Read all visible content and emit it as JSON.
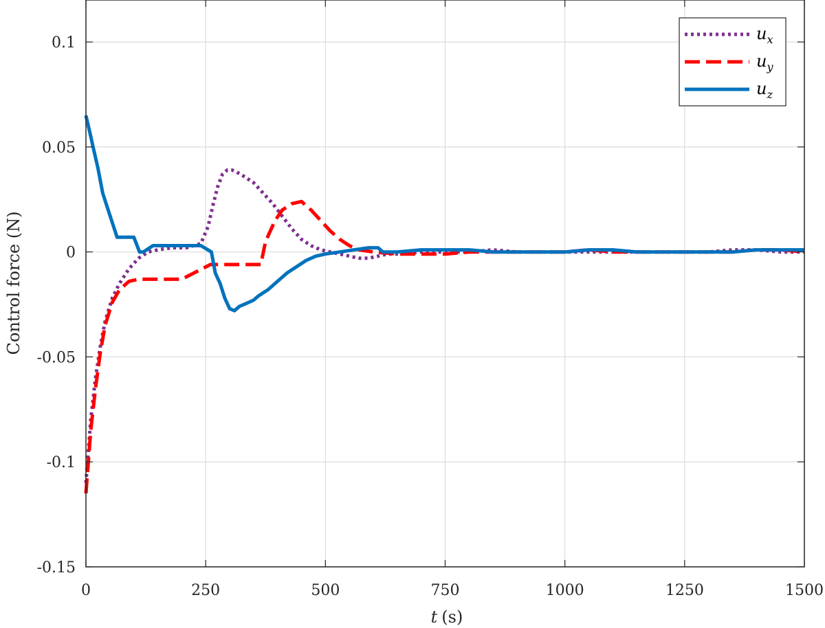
{
  "chart_data": {
    "type": "line",
    "xlabel_var": "t",
    "xlabel_unit": "(s)",
    "ylabel": "Control force (N)",
    "xlim": [
      0,
      1500
    ],
    "ylim": [
      -0.15,
      0.12
    ],
    "xticks": [
      0,
      250,
      500,
      750,
      1000,
      1250,
      1500
    ],
    "xtick_labels": [
      "0",
      "250",
      "500",
      "750",
      "1000",
      "1250",
      "1500"
    ],
    "yticks": [
      -0.15,
      -0.1,
      -0.05,
      0,
      0.05,
      0.1
    ],
    "ytick_labels": [
      "-0.15",
      "-0.1",
      "-0.05",
      "0",
      "0.05",
      "0.1"
    ],
    "grid": true,
    "legend_position": "top-right",
    "series": [
      {
        "name": "u_x",
        "legend_base": "u",
        "legend_sub": "x",
        "color": "#7E2F8E",
        "style": "dotted",
        "x": [
          0,
          5,
          10,
          20,
          30,
          40,
          55,
          70,
          90,
          110,
          130,
          150,
          180,
          210,
          240,
          255,
          265,
          275,
          285,
          295,
          305,
          315,
          330,
          350,
          370,
          390,
          410,
          430,
          450,
          470,
          490,
          510,
          530,
          550,
          570,
          590,
          610,
          630,
          660,
          700,
          750,
          800,
          850,
          900,
          950,
          1000,
          1050,
          1100,
          1150,
          1200,
          1250,
          1300,
          1350,
          1400,
          1450,
          1500
        ],
        "y": [
          -0.11,
          -0.095,
          -0.08,
          -0.06,
          -0.045,
          -0.033,
          -0.022,
          -0.015,
          -0.008,
          -0.003,
          0.0,
          0.001,
          0.002,
          0.002,
          0.004,
          0.012,
          0.022,
          0.031,
          0.037,
          0.039,
          0.039,
          0.038,
          0.036,
          0.033,
          0.028,
          0.023,
          0.017,
          0.011,
          0.006,
          0.003,
          0.001,
          0.0,
          -0.001,
          -0.002,
          -0.003,
          -0.003,
          -0.002,
          -0.001,
          -0.001,
          0.0,
          0.0,
          0.0,
          0.001,
          0.0,
          0.0,
          0.0,
          0.0,
          0.0,
          0.0,
          0.0,
          0.0,
          0.0,
          0.001,
          0.001,
          0.0,
          0.0
        ]
      },
      {
        "name": "u_y",
        "legend_base": "u",
        "legend_sub": "y",
        "color": "#FF0000",
        "style": "dashed",
        "x": [
          0,
          5,
          10,
          20,
          30,
          40,
          55,
          70,
          90,
          110,
          130,
          150,
          200,
          260,
          300,
          340,
          365,
          375,
          385,
          395,
          410,
          430,
          450,
          470,
          490,
          510,
          530,
          550,
          570,
          600,
          650,
          700,
          750,
          800,
          850,
          900,
          950,
          1000,
          1050,
          1100,
          1150,
          1200,
          1250,
          1300,
          1350,
          1400,
          1450,
          1500
        ],
        "y": [
          -0.115,
          -0.1,
          -0.085,
          -0.065,
          -0.048,
          -0.035,
          -0.024,
          -0.018,
          -0.014,
          -0.013,
          -0.013,
          -0.013,
          -0.013,
          -0.006,
          -0.006,
          -0.006,
          -0.006,
          0.005,
          0.01,
          0.015,
          0.02,
          0.023,
          0.024,
          0.02,
          0.015,
          0.01,
          0.006,
          0.003,
          0.001,
          0.0,
          -0.001,
          -0.001,
          -0.001,
          0.0,
          0.0,
          0.0,
          0.0,
          0.0,
          0.001,
          0.0,
          0.0,
          0.0,
          0.0,
          0.0,
          0.0,
          0.001,
          0.001,
          0.0
        ]
      },
      {
        "name": "u_z",
        "legend_base": "u",
        "legend_sub": "z",
        "color": "#0072BD",
        "style": "solid",
        "x": [
          0,
          5,
          10,
          15,
          20,
          25,
          30,
          35,
          45,
          55,
          65,
          80,
          100,
          112,
          120,
          140,
          160,
          200,
          240,
          262,
          270,
          280,
          290,
          300,
          310,
          320,
          330,
          340,
          350,
          360,
          380,
          400,
          420,
          440,
          460,
          480,
          500,
          530,
          560,
          590,
          610,
          620,
          650,
          700,
          750,
          800,
          850,
          900,
          950,
          1000,
          1050,
          1100,
          1150,
          1200,
          1250,
          1300,
          1350,
          1400,
          1450,
          1500
        ],
        "y": [
          0.065,
          0.06,
          0.055,
          0.05,
          0.045,
          0.04,
          0.034,
          0.028,
          0.021,
          0.014,
          0.007,
          0.007,
          0.007,
          0.0,
          0.0,
          0.003,
          0.003,
          0.003,
          0.003,
          0.0,
          -0.01,
          -0.015,
          -0.022,
          -0.027,
          -0.028,
          -0.026,
          -0.025,
          -0.024,
          -0.023,
          -0.021,
          -0.018,
          -0.014,
          -0.01,
          -0.007,
          -0.004,
          -0.002,
          -0.001,
          0.0,
          0.001,
          0.002,
          0.002,
          0.0,
          0.0,
          0.001,
          0.001,
          0.001,
          0.0,
          0.0,
          0.0,
          0.0,
          0.001,
          0.001,
          0.0,
          0.0,
          0.0,
          0.0,
          0.0,
          0.001,
          0.001,
          0.001
        ]
      }
    ]
  }
}
